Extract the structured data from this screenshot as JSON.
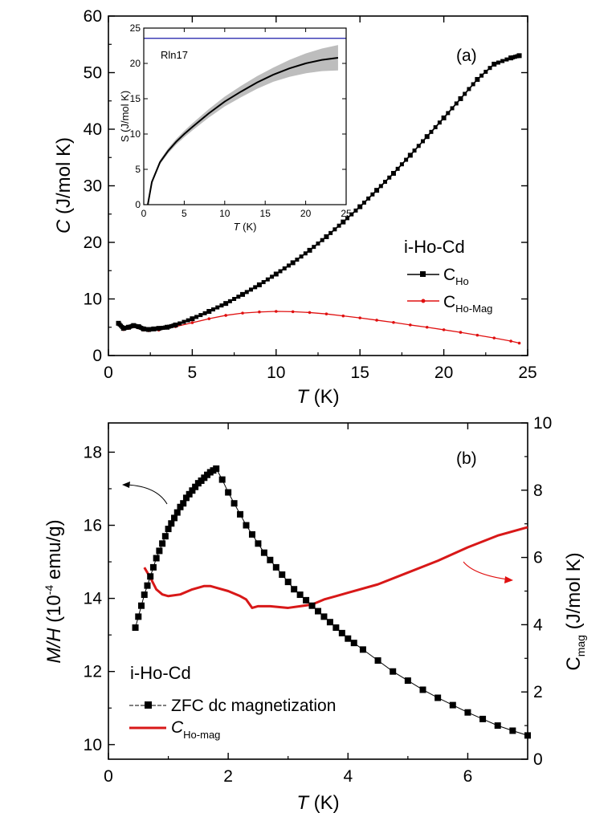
{
  "colors": {
    "black": "#000000",
    "red": "#e01010",
    "red_line": "#d81818",
    "blue": "#1a1aa8",
    "band": "#bdbdbd",
    "arrow_red": "#e01010"
  },
  "chart_data": [
    {
      "id": "panel-a",
      "type": "line",
      "panel_label": "(a)",
      "xlabel_italic": "T",
      "xlabel_unit": " (K)",
      "ylabel_italic": "C",
      "ylabel_unit": " (J/mol K)",
      "xlim": [
        0,
        25
      ],
      "ylim": [
        0,
        60
      ],
      "xticks": [
        0,
        5,
        10,
        15,
        20,
        25
      ],
      "yticks": [
        0,
        10,
        20,
        30,
        40,
        50,
        60
      ],
      "legend_title": "i-Ho-Cd",
      "series": [
        {
          "name": "C_Ho",
          "legend_main": "C",
          "legend_sub": "Ho",
          "color": "#000000",
          "marker": "square",
          "x": [
            0.6,
            0.9,
            1.2,
            1.5,
            1.8,
            2.1,
            2.4,
            2.7,
            3.0,
            3.5,
            4.0,
            5.0,
            6.0,
            7.0,
            8.0,
            9.0,
            10.0,
            11.0,
            12.0,
            13.0,
            14.0,
            15.0,
            16.0,
            17.0,
            18.0,
            19.0,
            20.0,
            21.0,
            22.0,
            23.0,
            24.0,
            24.5
          ],
          "y": [
            5.7,
            4.8,
            5.0,
            5.3,
            5.1,
            4.7,
            4.6,
            4.7,
            4.8,
            5.0,
            5.4,
            6.5,
            7.8,
            9.2,
            10.8,
            12.5,
            14.4,
            16.4,
            18.6,
            21.0,
            23.6,
            26.3,
            29.2,
            32.2,
            35.4,
            38.7,
            42.0,
            45.4,
            48.8,
            51.5,
            52.6,
            53.0
          ]
        },
        {
          "name": "C_Ho-Mag",
          "legend_main": "C",
          "legend_sub": "Ho-Mag",
          "color": "#e01010",
          "marker": "dot",
          "x": [
            0.6,
            0.9,
            1.2,
            1.5,
            1.8,
            2.1,
            2.4,
            3.0,
            4.0,
            5.0,
            6.0,
            7.0,
            8.0,
            9.0,
            10.0,
            11.0,
            12.0,
            13.0,
            14.0,
            15.0,
            16.0,
            17.0,
            18.0,
            19.0,
            20.0,
            21.0,
            22.0,
            23.0,
            24.0,
            24.5
          ],
          "y": [
            5.5,
            4.6,
            4.8,
            5.1,
            4.9,
            4.5,
            4.4,
            4.5,
            5.1,
            5.8,
            6.5,
            7.1,
            7.5,
            7.7,
            7.8,
            7.75,
            7.6,
            7.35,
            7.0,
            6.65,
            6.25,
            5.85,
            5.4,
            5.0,
            4.55,
            4.1,
            3.6,
            3.1,
            2.55,
            2.2
          ]
        }
      ],
      "inset": {
        "type": "line",
        "xlabel_italic": "T",
        "xlabel_unit": " (K)",
        "ylabel": "S (J/mol K)",
        "xlim": [
          0,
          25
        ],
        "ylim": [
          0,
          25
        ],
        "xticks": [
          0,
          5,
          10,
          15,
          20,
          25
        ],
        "yticks": [
          0,
          5,
          10,
          15,
          20,
          25
        ],
        "reference_label": "Rln17",
        "reference_value": 23.55,
        "entropy": {
          "x": [
            0.5,
            1,
            2,
            3,
            4,
            5,
            6,
            8,
            10,
            12,
            14,
            16,
            18,
            20,
            22,
            24
          ],
          "y": [
            0,
            3.2,
            6.0,
            7.6,
            8.9,
            10.0,
            11.0,
            12.9,
            14.6,
            16.0,
            17.3,
            18.4,
            19.3,
            20.0,
            20.5,
            20.8
          ],
          "err": [
            0.1,
            0.2,
            0.3,
            0.35,
            0.4,
            0.45,
            0.5,
            0.6,
            0.7,
            0.8,
            0.9,
            1.0,
            1.2,
            1.4,
            1.6,
            1.8
          ]
        }
      }
    },
    {
      "id": "panel-b",
      "type": "line",
      "panel_label": "(b)",
      "xlabel_italic": "T",
      "xlabel_unit": " (K)",
      "ylabel_left_italic": "M/H",
      "ylabel_left_unit_pre": " (10",
      "ylabel_left_exp": "-4",
      "ylabel_left_unit_post": " emu/g)",
      "ylabel_right_main": "C",
      "ylabel_right_sub": "mag",
      "ylabel_right_unit": " (J/mol K)",
      "xlim": [
        0,
        7
      ],
      "ylim_left": [
        9.6,
        18.8
      ],
      "ylim_right": [
        0,
        10
      ],
      "xticks": [
        0,
        2,
        4,
        6
      ],
      "yticks_left": [
        10,
        12,
        14,
        16,
        18
      ],
      "yticks_right": [
        0,
        2,
        4,
        6,
        8,
        10
      ],
      "legend_title": "i-Ho-Cd",
      "series": [
        {
          "name": "ZFC dc magnetization",
          "legend_label": "ZFC dc magnetization",
          "axis": "left",
          "color": "#000000",
          "marker": "square",
          "x": [
            0.45,
            0.5,
            0.55,
            0.6,
            0.65,
            0.7,
            0.75,
            0.8,
            0.85,
            0.9,
            0.95,
            1.0,
            1.05,
            1.1,
            1.15,
            1.2,
            1.25,
            1.3,
            1.35,
            1.4,
            1.45,
            1.5,
            1.55,
            1.6,
            1.65,
            1.7,
            1.75,
            1.8,
            1.9,
            2.0,
            2.1,
            2.2,
            2.3,
            2.4,
            2.5,
            2.6,
            2.7,
            2.8,
            2.9,
            3.0,
            3.1,
            3.2,
            3.3,
            3.4,
            3.5,
            3.6,
            3.7,
            3.8,
            3.9,
            4.0,
            4.1,
            4.25,
            4.5,
            4.75,
            5.0,
            5.25,
            5.5,
            5.75,
            6.0,
            6.25,
            6.5,
            6.75,
            7.0
          ],
          "y": [
            13.2,
            13.5,
            13.8,
            14.1,
            14.35,
            14.6,
            14.85,
            15.1,
            15.3,
            15.5,
            15.7,
            15.9,
            16.05,
            16.2,
            16.35,
            16.5,
            16.6,
            16.75,
            16.85,
            16.95,
            17.05,
            17.15,
            17.22,
            17.3,
            17.38,
            17.45,
            17.5,
            17.55,
            17.25,
            16.9,
            16.6,
            16.3,
            16.0,
            15.75,
            15.5,
            15.25,
            15.05,
            14.85,
            14.65,
            14.45,
            14.25,
            14.1,
            13.95,
            13.8,
            13.65,
            13.5,
            13.35,
            13.2,
            13.05,
            12.9,
            12.78,
            12.6,
            12.3,
            12.0,
            11.75,
            11.5,
            11.28,
            11.08,
            10.88,
            10.7,
            10.52,
            10.38,
            10.25
          ]
        },
        {
          "name": "C_Ho-mag",
          "legend_main": "C",
          "legend_sub": "Ho-mag",
          "axis": "right",
          "color": "#d81818",
          "marker": "none",
          "x": [
            0.6,
            0.7,
            0.8,
            0.9,
            1.0,
            1.2,
            1.4,
            1.6,
            1.7,
            1.8,
            2.0,
            2.2,
            2.3,
            2.4,
            2.5,
            2.7,
            3.0,
            3.2,
            3.4,
            3.6,
            3.8,
            4.0,
            4.5,
            5.0,
            5.5,
            6.0,
            6.5,
            7.0
          ],
          "y": [
            5.7,
            5.4,
            5.05,
            4.9,
            4.85,
            4.9,
            5.05,
            5.15,
            5.15,
            5.1,
            5.0,
            4.85,
            4.75,
            4.5,
            4.55,
            4.55,
            4.5,
            4.55,
            4.6,
            4.75,
            4.85,
            4.95,
            5.2,
            5.55,
            5.9,
            6.3,
            6.65,
            6.9
          ]
        }
      ]
    }
  ]
}
